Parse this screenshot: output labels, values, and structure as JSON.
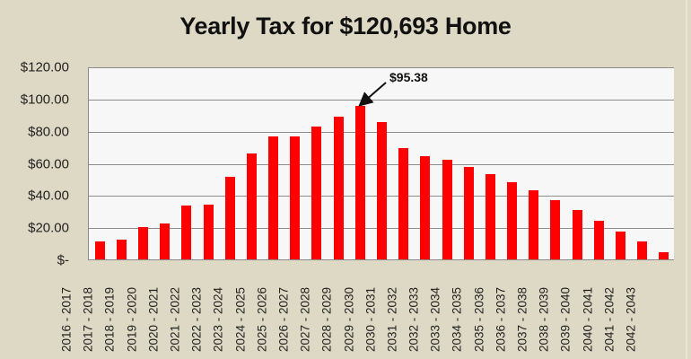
{
  "chart_data": {
    "type": "bar",
    "title": "Yearly Tax for $120,693 Home",
    "xlabel": "",
    "ylabel": "",
    "ylim": [
      0,
      120
    ],
    "yticks": [
      "$-",
      "$20.00",
      "$40.00",
      "$60.00",
      "$80.00",
      "$100.00",
      "$120.00"
    ],
    "ytick_values": [
      0,
      20,
      40,
      60,
      80,
      100,
      120
    ],
    "grid": true,
    "legend": null,
    "bar_color": "#ff0000",
    "categories": [
      "2016 - 2017",
      "2017 - 2018",
      "2018 - 2019",
      "2019 - 2020",
      "2020 - 2021",
      "2021 - 2022",
      "2022 - 2023",
      "2023 - 2024",
      "2024 - 2025",
      "2025 - 2026",
      "2026 - 2027",
      "2027 - 2028",
      "2028 - 2029",
      "2029 - 2030",
      "2030 - 2031",
      "2031 - 2032",
      "2032 - 2033",
      "2033 - 2034",
      "2034 - 2035",
      "2035 - 2036",
      "2036 - 2037",
      "2037 - 2038",
      "2038 - 2039",
      "2039 - 2040",
      "2040 - 2041",
      "2041 - 2042",
      "2042 - 2043"
    ],
    "values": [
      11.0,
      12.3,
      20.0,
      22.1,
      33.5,
      34.1,
      51.5,
      65.9,
      76.4,
      76.4,
      82.6,
      88.9,
      95.38,
      85.4,
      69.1,
      64.0,
      62.1,
      57.6,
      52.8,
      47.8,
      43.0,
      37.1,
      30.9,
      23.8,
      17.3,
      11.0,
      4.3
    ],
    "annotations": [
      {
        "text": "$95.38",
        "category": "2028 - 2029",
        "value": 95.38,
        "arrow": true
      }
    ]
  },
  "colors": {
    "background": "#ddd9c4",
    "plot_background": "#f7f7f7",
    "gridline": "#8c8c8c",
    "bar": "#ff0000"
  }
}
